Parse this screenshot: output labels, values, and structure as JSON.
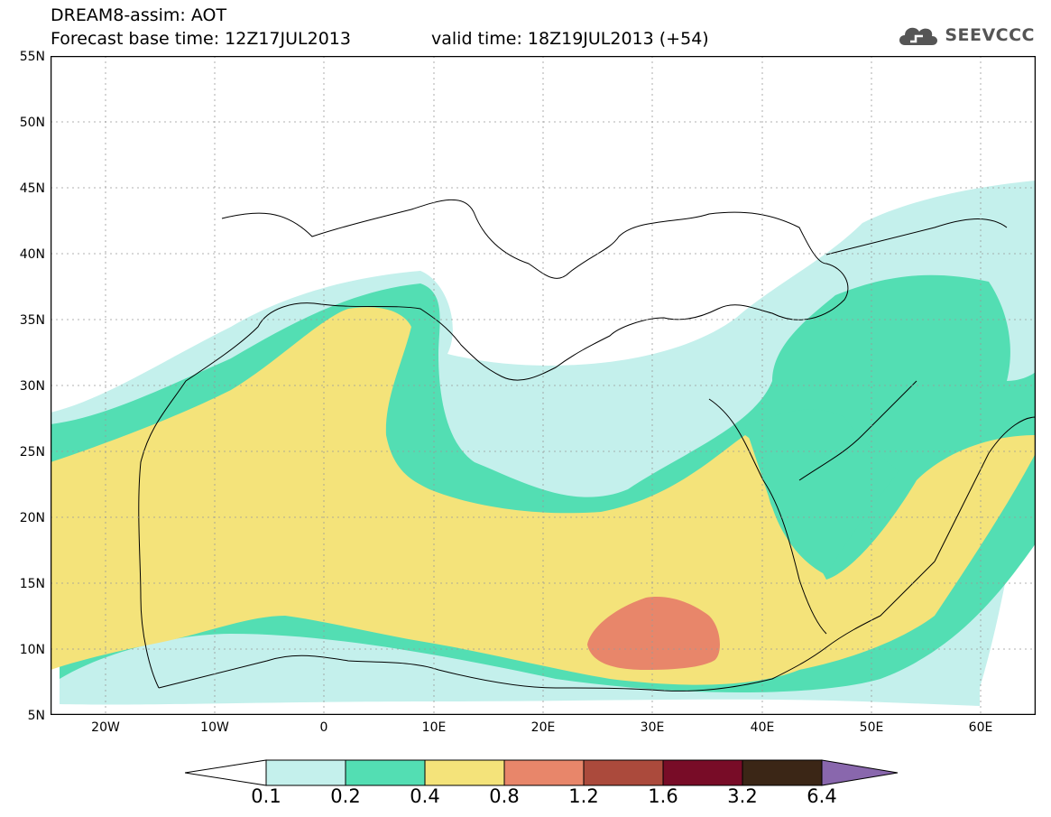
{
  "header": {
    "title_line1": "DREAM8-assim: AOT",
    "title_line2": "Forecast base time: 12Z17JUL2013",
    "valid_time": "valid time: 18Z19JUL2013 (+54)",
    "logo_text": "SEEVCCC",
    "logo_icon": "cloud-icon"
  },
  "map": {
    "lon_range": [
      -25,
      65
    ],
    "lat_range": [
      5,
      55
    ],
    "lat_labels": [
      "55N",
      "50N",
      "45N",
      "40N",
      "35N",
      "30N",
      "25N",
      "20N",
      "15N",
      "10N",
      "5N"
    ],
    "lon_labels": [
      "20W",
      "10W",
      "0",
      "10E",
      "20E",
      "30E",
      "40E",
      "50E",
      "60E"
    ],
    "grid": true
  },
  "legend": {
    "thresholds": [
      "0.1",
      "0.2",
      "0.4",
      "0.8",
      "1.2",
      "1.6",
      "3.2",
      "6.4"
    ],
    "colors": [
      "#ffffff",
      "#c4f0ec",
      "#53deb3",
      "#f4e37a",
      "#e8866a",
      "#ab4a3c",
      "#780c27",
      "#3b2616",
      "#8967ad"
    ]
  }
}
